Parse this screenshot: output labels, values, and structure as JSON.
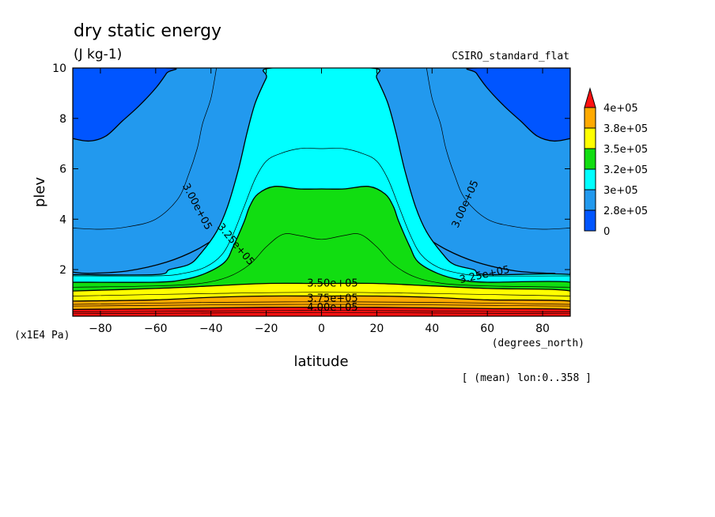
{
  "chart_data": {
    "type": "heatmap",
    "title": "dry static energy",
    "units": "(J kg-1)",
    "model": "CSIRO_standard_flat",
    "xlabel": "latitude",
    "xunits": "(degrees_north)",
    "ylabel": "plev",
    "yunits": "(x1E4 Pa)",
    "note": "[ (mean) lon:0..358 ]",
    "xlim": [
      -90,
      90
    ],
    "ylim": [
      10,
      0.15
    ],
    "y_reversed": true,
    "x_ticks": [
      -80,
      -60,
      -40,
      -20,
      0,
      20,
      40,
      60,
      80
    ],
    "x_tick_labels": [
      "−80",
      "−60",
      "−40",
      "−20",
      "0",
      "20",
      "40",
      "60",
      "80"
    ],
    "y_ticks": [
      2,
      4,
      6,
      8,
      10
    ],
    "y_tick_labels": [
      "2",
      "4",
      "6",
      "8",
      "10"
    ],
    "fill_levels": [
      {
        "label": "0",
        "color": "#0055ff"
      },
      {
        "label": "2.8e+05",
        "color": "#2299ee"
      },
      {
        "label": "3e+05",
        "color": "#00ffff"
      },
      {
        "label": "3.2e+05",
        "color": "#11dd11"
      },
      {
        "label": "3.5e+05",
        "color": "#ffff00"
      },
      {
        "label": "3.8e+05",
        "color": "#ffaa00"
      },
      {
        "label": "4e+05",
        "color": "#ff1111"
      }
    ],
    "contour_labels": [
      {
        "text": "4.00e+05",
        "lat": 4,
        "plev": 0.5,
        "angle": 0
      },
      {
        "text": "3.75e+05",
        "lat": 4,
        "plev": 0.85,
        "angle": 0
      },
      {
        "text": "3.50e+05",
        "lat": 4,
        "plev": 1.45,
        "angle": 0
      },
      {
        "text": "3.25e+05",
        "lat": -31,
        "plev": 3.0,
        "angle": 50
      },
      {
        "text": "3.00e+05",
        "lat": -45,
        "plev": 4.5,
        "angle": 62
      },
      {
        "text": "3.25e+05",
        "lat": 59,
        "plev": 1.8,
        "angle": -12
      },
      {
        "text": "3.00e+05",
        "lat": 52,
        "plev": 4.6,
        "angle": -66
      }
    ],
    "regions": [
      {
        "color": "#2299ee",
        "points": [
          [
            -90,
            1.9
          ],
          [
            -84,
            1.85
          ],
          [
            -70,
            1.95
          ],
          [
            -56,
            2.3
          ],
          [
            -45,
            2.8
          ],
          [
            -33,
            3.6
          ],
          [
            -25,
            4.0
          ],
          [
            -15,
            4.2
          ],
          [
            0,
            4.2
          ],
          [
            15,
            4.2
          ],
          [
            25,
            4.0
          ],
          [
            33,
            3.6
          ],
          [
            45,
            2.8
          ],
          [
            56,
            2.3
          ],
          [
            70,
            1.95
          ],
          [
            84,
            1.85
          ],
          [
            90,
            1.9
          ],
          [
            90,
            10
          ],
          [
            -90,
            10
          ]
        ]
      },
      {
        "color": "#00ffff",
        "points": [
          [
            -90,
            1.8
          ],
          [
            -60,
            1.8
          ],
          [
            -55,
            2.0
          ],
          [
            -48,
            2.2
          ],
          [
            -44,
            2.6
          ],
          [
            -38,
            3.5
          ],
          [
            -34,
            4.5
          ],
          [
            -30,
            6.0
          ],
          [
            -27,
            7.4
          ],
          [
            -24,
            8.6
          ],
          [
            -20,
            9.6
          ],
          [
            -18,
            10
          ],
          [
            18,
            10
          ],
          [
            20,
            9.6
          ],
          [
            24,
            8.6
          ],
          [
            27,
            7.4
          ],
          [
            30,
            6.0
          ],
          [
            34,
            4.5
          ],
          [
            38,
            3.5
          ],
          [
            44,
            2.6
          ],
          [
            48,
            2.2
          ],
          [
            55,
            2.0
          ],
          [
            60,
            1.8
          ],
          [
            90,
            1.8
          ],
          [
            90,
            1.3
          ],
          [
            -90,
            1.3
          ]
        ]
      },
      {
        "color": "#11dd11",
        "points": [
          [
            -90,
            1.5
          ],
          [
            -60,
            1.5
          ],
          [
            -50,
            1.6
          ],
          [
            -42,
            1.85
          ],
          [
            -35,
            2.3
          ],
          [
            -32,
            2.9
          ],
          [
            -28,
            3.9
          ],
          [
            -26,
            4.5
          ],
          [
            -23,
            5.0
          ],
          [
            -17,
            5.3
          ],
          [
            -8,
            5.2
          ],
          [
            0,
            5.2
          ],
          [
            8,
            5.2
          ],
          [
            17,
            5.3
          ],
          [
            23,
            5.0
          ],
          [
            26,
            4.5
          ],
          [
            28,
            3.9
          ],
          [
            32,
            2.9
          ],
          [
            35,
            2.3
          ],
          [
            42,
            1.85
          ],
          [
            50,
            1.6
          ],
          [
            60,
            1.5
          ],
          [
            90,
            1.5
          ],
          [
            90,
            1.0
          ],
          [
            -90,
            1.0
          ]
        ]
      },
      {
        "color": "#ffff00",
        "points": [
          [
            -90,
            1.15
          ],
          [
            -60,
            1.25
          ],
          [
            -40,
            1.35
          ],
          [
            -20,
            1.45
          ],
          [
            0,
            1.45
          ],
          [
            20,
            1.45
          ],
          [
            40,
            1.35
          ],
          [
            60,
            1.25
          ],
          [
            90,
            1.15
          ],
          [
            90,
            0.6
          ],
          [
            -90,
            0.6
          ]
        ]
      },
      {
        "color": "#ffaa00",
        "points": [
          [
            -90,
            0.75
          ],
          [
            -60,
            0.8
          ],
          [
            -40,
            0.9
          ],
          [
            -20,
            0.95
          ],
          [
            0,
            0.95
          ],
          [
            20,
            0.95
          ],
          [
            40,
            0.9
          ],
          [
            60,
            0.8
          ],
          [
            90,
            0.75
          ],
          [
            90,
            0.4
          ],
          [
            -90,
            0.4
          ]
        ]
      },
      {
        "color": "#ff1111",
        "points": [
          [
            -90,
            0.42
          ],
          [
            -60,
            0.45
          ],
          [
            -40,
            0.48
          ],
          [
            -20,
            0.5
          ],
          [
            0,
            0.5
          ],
          [
            20,
            0.5
          ],
          [
            40,
            0.48
          ],
          [
            60,
            0.45
          ],
          [
            90,
            0.42
          ],
          [
            90,
            0.15
          ],
          [
            -90,
            0.15
          ]
        ]
      },
      {
        "color": "#0055ff",
        "points": [
          [
            -90,
            7.2
          ],
          [
            -84,
            7.1
          ],
          [
            -78,
            7.3
          ],
          [
            -72,
            7.9
          ],
          [
            -66,
            8.5
          ],
          [
            -60,
            9.2
          ],
          [
            -56,
            9.8
          ],
          [
            -55,
            10
          ],
          [
            -90,
            10
          ]
        ]
      },
      {
        "color": "#0055ff",
        "points": [
          [
            90,
            7.2
          ],
          [
            84,
            7.1
          ],
          [
            78,
            7.3
          ],
          [
            72,
            7.9
          ],
          [
            66,
            8.5
          ],
          [
            60,
            9.2
          ],
          [
            56,
            9.8
          ],
          [
            55,
            10
          ],
          [
            90,
            10
          ]
        ]
      }
    ],
    "thin_contours": [
      [
        [
          -90,
          3.65
        ],
        [
          -80,
          3.6
        ],
        [
          -70,
          3.7
        ],
        [
          -60,
          4.0
        ],
        [
          -52,
          4.8
        ],
        [
          -48,
          5.8
        ],
        [
          -45,
          6.8
        ],
        [
          -43,
          7.8
        ],
        [
          -40,
          8.8
        ],
        [
          -38,
          10
        ]
      ],
      [
        [
          90,
          3.65
        ],
        [
          80,
          3.6
        ],
        [
          70,
          3.7
        ],
        [
          60,
          4.0
        ],
        [
          52,
          4.8
        ],
        [
          48,
          5.8
        ],
        [
          45,
          6.8
        ],
        [
          43,
          7.8
        ],
        [
          40,
          8.8
        ],
        [
          38,
          10
        ]
      ],
      [
        [
          -90,
          1.75
        ],
        [
          -60,
          1.75
        ],
        [
          -50,
          1.85
        ],
        [
          -42,
          2.1
        ],
        [
          -36,
          2.6
        ],
        [
          -32,
          3.4
        ],
        [
          -28,
          4.5
        ],
        [
          -24,
          5.6
        ],
        [
          -20,
          6.3
        ],
        [
          -15,
          6.6
        ],
        [
          -8,
          6.8
        ],
        [
          0,
          6.8
        ],
        [
          8,
          6.8
        ],
        [
          15,
          6.6
        ],
        [
          20,
          6.3
        ],
        [
          24,
          5.6
        ],
        [
          28,
          4.5
        ],
        [
          32,
          3.4
        ],
        [
          36,
          2.6
        ],
        [
          42,
          2.1
        ],
        [
          50,
          1.85
        ],
        [
          60,
          1.75
        ],
        [
          90,
          1.75
        ]
      ],
      [
        [
          -90,
          1.3
        ],
        [
          -60,
          1.35
        ],
        [
          -44,
          1.45
        ],
        [
          -34,
          1.7
        ],
        [
          -26,
          2.2
        ],
        [
          -20,
          2.9
        ],
        [
          -14,
          3.4
        ],
        [
          -8,
          3.35
        ],
        [
          0,
          3.2
        ],
        [
          8,
          3.35
        ],
        [
          14,
          3.4
        ],
        [
          20,
          2.9
        ],
        [
          26,
          2.2
        ],
        [
          34,
          1.7
        ],
        [
          44,
          1.45
        ],
        [
          60,
          1.35
        ],
        [
          90,
          1.3
        ]
      ],
      [
        [
          -90,
          0.95
        ],
        [
          -40,
          1.05
        ],
        [
          0,
          1.1
        ],
        [
          40,
          1.05
        ],
        [
          90,
          0.95
        ]
      ],
      [
        [
          -90,
          0.62
        ],
        [
          -40,
          0.7
        ],
        [
          0,
          0.72
        ],
        [
          40,
          0.7
        ],
        [
          90,
          0.62
        ]
      ],
      [
        [
          -90,
          0.55
        ],
        [
          -40,
          0.6
        ],
        [
          0,
          0.62
        ],
        [
          40,
          0.6
        ],
        [
          90,
          0.55
        ]
      ],
      [
        [
          -90,
          0.32
        ],
        [
          -40,
          0.36
        ],
        [
          0,
          0.38
        ],
        [
          40,
          0.36
        ],
        [
          90,
          0.32
        ]
      ],
      [
        [
          -90,
          0.25
        ],
        [
          -40,
          0.28
        ],
        [
          0,
          0.3
        ],
        [
          40,
          0.28
        ],
        [
          90,
          0.25
        ]
      ]
    ]
  }
}
